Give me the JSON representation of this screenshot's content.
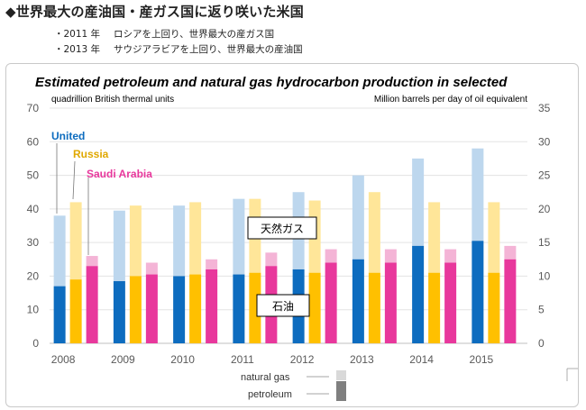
{
  "header": {
    "headline": "◆世界最大の産油国・産ガス国に返り咲いた米国",
    "bullets": [
      {
        "year": "・2011 年",
        "text": "ロシアを上回り、世界最大の産ガス国"
      },
      {
        "year": "・2013 年",
        "text": "サウジアラビアを上回り、世界最大の産油国"
      }
    ]
  },
  "chart_data": {
    "type": "bar",
    "title": "Estimated petroleum and natural gas hydrocarbon production in selected",
    "ylabel": "quadrillion British thermal units",
    "y2label": "Million barrels per day of oil equivalent",
    "ylim": [
      0,
      70
    ],
    "y2lim": [
      0,
      35
    ],
    "yticks": [
      "0",
      "10",
      "20",
      "30",
      "40",
      "50",
      "60",
      "70"
    ],
    "y2ticks": [
      "0",
      "5",
      "10",
      "15",
      "20",
      "25",
      "30",
      "35"
    ],
    "categories": [
      "2008",
      "2009",
      "2010",
      "2011",
      "2012",
      "2013",
      "2014",
      "2015"
    ],
    "stacked": true,
    "series": [
      {
        "name": "United",
        "color_oil": "#0d6cbf",
        "color_gas": "#bdd7ee",
        "petroleum": [
          17,
          18.5,
          20,
          20.5,
          22,
          25,
          29,
          30.5
        ],
        "total": [
          38,
          39.5,
          41,
          43,
          45,
          50,
          55,
          58
        ]
      },
      {
        "name": "Russia",
        "color_oil": "#ffc000",
        "color_gas": "#ffe699",
        "petroleum": [
          19,
          20,
          20.5,
          21,
          21,
          21,
          21,
          21
        ],
        "total": [
          42,
          41,
          42,
          43,
          42.5,
          45,
          42,
          42
        ]
      },
      {
        "name": "Saudi Arabia",
        "color_oil": "#e8389c",
        "color_gas": "#f4b4d6",
        "petroleum": [
          23,
          20.5,
          22,
          23,
          24,
          24,
          24,
          25
        ],
        "total": [
          26,
          24,
          25,
          27,
          28,
          28,
          28,
          29
        ]
      }
    ],
    "annotations": [
      "天然ガス",
      "石油"
    ],
    "legend": [
      {
        "label": "natural gas",
        "color": "#d9d9d9"
      },
      {
        "label": "petroleum",
        "color": "#7f7f7f"
      }
    ]
  }
}
